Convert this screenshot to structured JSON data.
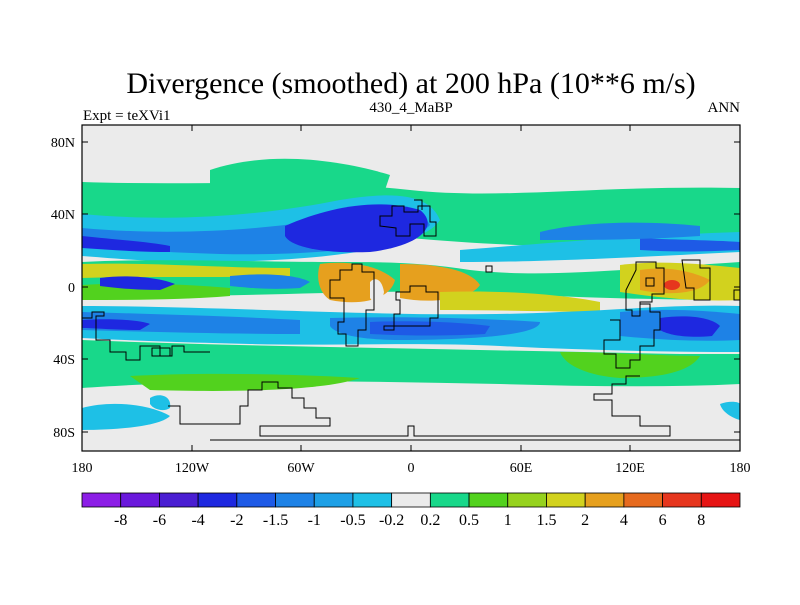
{
  "title": "Divergence (smoothed) at 200 hPa (10**6 m/s)",
  "left_label": "Expt = teXVi1",
  "center_label": "430_4_MaBP",
  "right_label": "ANN",
  "lat_labels": [
    "80N",
    "40N",
    "0",
    "40S",
    "80S"
  ],
  "lon_labels": [
    "180",
    "120W",
    "60W",
    "0",
    "60E",
    "120E",
    "180"
  ],
  "colorbar": {
    "colors": [
      "#8c1ee6",
      "#6a18dc",
      "#4a1ed2",
      "#1e28e0",
      "#1e5ae6",
      "#1e82e6",
      "#1ea0e6",
      "#1ec0e6",
      "#ebebeb",
      "#18d88a",
      "#52d21e",
      "#96d21e",
      "#d2d21e",
      "#e6a01e",
      "#e66a1e",
      "#e6361e",
      "#e61414"
    ],
    "labels": [
      "-8",
      "-6",
      "-4",
      "-2",
      "-1.5",
      "-1",
      "-0.5",
      "-0.2",
      "0.2",
      "0.5",
      "1",
      "1.5",
      "2",
      "4",
      "6",
      "8"
    ]
  },
  "chart_data": {
    "type": "heatmap",
    "title": "Divergence (smoothed) at 200 hPa (10**6 m/s)",
    "variable": "Divergence (smoothed)",
    "level": "200 hPa",
    "units": "10**6 m/s",
    "experiment": "teXVi1",
    "period": "430_4_MaBP",
    "season": "ANN",
    "lon_range": [
      -180,
      180
    ],
    "lat_range": [
      -90,
      90
    ],
    "contour_levels": [
      -8,
      -6,
      -4,
      -2,
      -1.5,
      -1,
      -0.5,
      -0.2,
      0.2,
      0.5,
      1,
      1.5,
      2,
      4,
      6,
      8
    ]
  }
}
